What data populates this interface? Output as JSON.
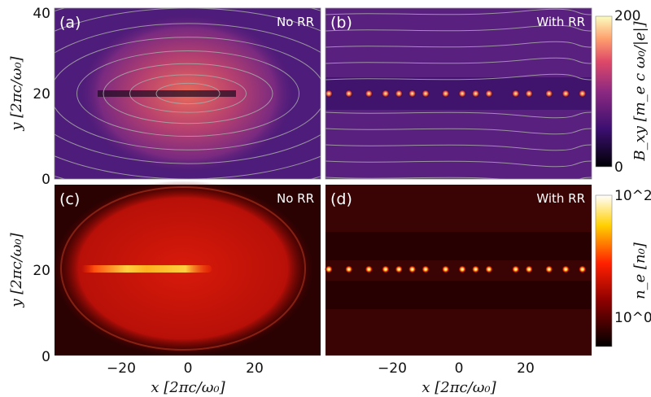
{
  "chart_data": [
    {
      "type": "heatmap",
      "panel_label": "(a)",
      "annotation": "No RR",
      "quantity": "B_xy",
      "colormap": "magma",
      "xlim": [
        -40,
        40
      ],
      "ylim": [
        0,
        40
      ],
      "yticks": [
        "0",
        "20",
        "40"
      ],
      "ylabel": "y [2πc/ω₀]",
      "streamlines": true
    },
    {
      "type": "heatmap",
      "panel_label": "(b)",
      "annotation": "With RR",
      "quantity": "B_xy",
      "colormap": "magma",
      "xlim": [
        -40,
        40
      ],
      "ylim": [
        0,
        40
      ],
      "streamlines": true
    },
    {
      "type": "heatmap",
      "panel_label": "(c)",
      "annotation": "No RR",
      "quantity": "n_e",
      "colormap": "hot",
      "xlim": [
        -40,
        40
      ],
      "ylim": [
        0,
        40
      ],
      "xticks": [
        "−20",
        "0",
        "20"
      ],
      "yticks": [
        "0",
        "20"
      ],
      "xlabel": "x [2πc/ω₀]",
      "ylabel": "y [2πc/ω₀]"
    },
    {
      "type": "heatmap",
      "panel_label": "(d)",
      "annotation": "With RR",
      "quantity": "n_e",
      "colormap": "hot",
      "xlim": [
        -40,
        40
      ],
      "ylim": [
        0,
        40
      ],
      "xticks": [
        "−20",
        "0",
        "20"
      ],
      "xlabel": "x [2πc/ω₀]"
    }
  ],
  "colorbars": {
    "top": {
      "label": "B_xy [m_e c ω₀/|e|]",
      "min_label": "0",
      "max_label": "200",
      "range": [
        0,
        200
      ],
      "scale": "linear"
    },
    "bottom": {
      "label": "n_e [n₀]",
      "ticks": [
        "10^0",
        "10^2"
      ],
      "scale": "log"
    }
  },
  "colors": {
    "magma": [
      "#000004",
      "#3b0f70",
      "#8c2981",
      "#de4968",
      "#fe9f6d",
      "#fcfdbf"
    ],
    "hot": [
      "#000000",
      "#8b0000",
      "#ff2000",
      "#ffd000",
      "#ffffff"
    ],
    "streamline": "#a8a8a8"
  }
}
